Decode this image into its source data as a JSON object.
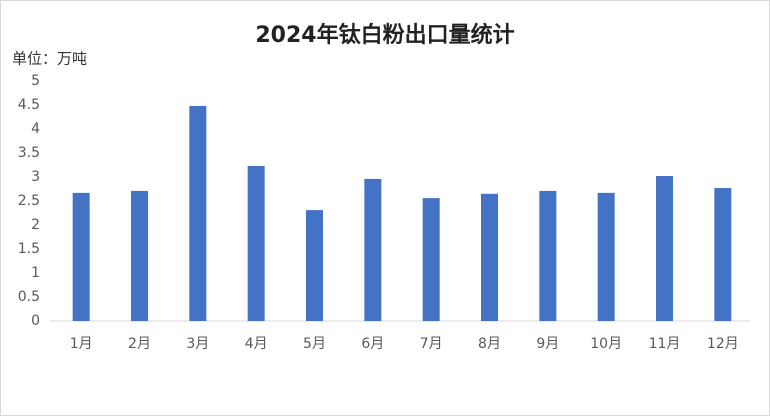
{
  "chart_data": {
    "type": "bar",
    "title": "2024年钛白粉出口量统计",
    "y_label": "单位：万吨",
    "categories": [
      "1月",
      "2月",
      "3月",
      "4月",
      "5月",
      "6月",
      "7月",
      "8月",
      "9月",
      "10月",
      "11月",
      "12月"
    ],
    "values": [
      2.67,
      2.71,
      4.48,
      3.23,
      2.31,
      2.96,
      2.56,
      2.65,
      2.71,
      2.67,
      3.02,
      2.77
    ],
    "color": "#4472c4",
    "ylim": [
      0,
      5
    ],
    "yticks": [
      0,
      0.5,
      1,
      1.5,
      2,
      2.5,
      3,
      3.5,
      4,
      4.5,
      5
    ],
    "grid": false
  }
}
